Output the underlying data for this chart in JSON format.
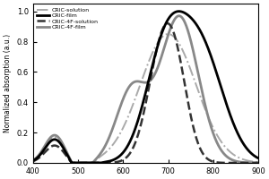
{
  "title": "",
  "xlabel": "",
  "ylabel": "Normalized absorption (a.u.)",
  "xlim": [
    400,
    900
  ],
  "ylim": [
    0.0,
    1.05
  ],
  "yticks": [
    0.0,
    0.2,
    0.4,
    0.6,
    0.8,
    1.0
  ],
  "xticks": [
    400,
    500,
    600,
    700,
    800,
    900
  ],
  "legend": [
    {
      "label": "CRIC-solution",
      "color": "#aaaaaa",
      "lw": 1.4,
      "ls": "dashdot"
    },
    {
      "label": "CRIC-film",
      "color": "#000000",
      "lw": 2.0,
      "ls": "solid"
    },
    {
      "label": "CRIC-4F-solution",
      "color": "#333333",
      "lw": 1.8,
      "ls": "dashed"
    },
    {
      "label": "CRIC-4F-film",
      "color": "#888888",
      "lw": 2.0,
      "ls": "solid"
    }
  ],
  "background_color": "#ffffff"
}
